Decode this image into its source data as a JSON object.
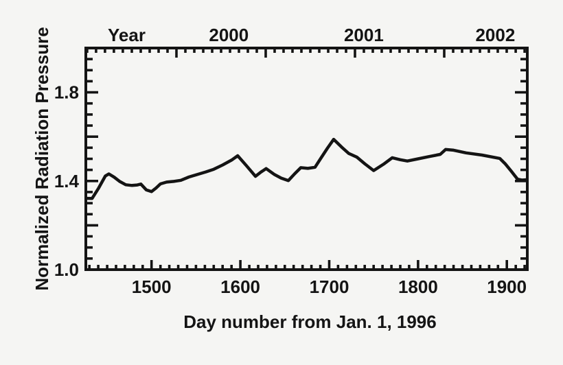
{
  "chart_data": {
    "type": "line",
    "title": "",
    "xlabel": "Day number from Jan. 1, 1996",
    "ylabel": "Normalized Radiation Pressure",
    "top_axis_label": "Year",
    "xlim": [
      1426,
      1923
    ],
    "ylim": [
      1.0,
      2.0
    ],
    "x_major_ticks": [
      1500,
      1600,
      1700,
      1800,
      1900
    ],
    "x_major_tick_labels": [
      "1500",
      "1600",
      "1700",
      "1800",
      "1900"
    ],
    "x_minor_interval": 10,
    "y_labeled_ticks": [
      1.0,
      1.4,
      1.8
    ],
    "y_labeled_tick_labels": [
      "1.0",
      "1.4",
      "1.8"
    ],
    "y_major_interval": 0.2,
    "y_minor_interval": 0.05,
    "top_major_ticks_days": [
      1528,
      1628.5,
      1729.8,
      1830.3
    ],
    "top_labels": [
      {
        "text": "Year",
        "day": 1472
      },
      {
        "text": "2000",
        "day": 1587
      },
      {
        "text": "2001",
        "day": 1739
      },
      {
        "text": "2002",
        "day": 1887
      }
    ],
    "grid": false,
    "legend": "none",
    "ink_color": "#141414",
    "background_color": "#f5f5f3",
    "series": [
      {
        "name": "normalized-radiation-pressure",
        "points": [
          [
            1426,
            1.322
          ],
          [
            1433,
            1.321
          ],
          [
            1440,
            1.365
          ],
          [
            1448,
            1.423
          ],
          [
            1452,
            1.432
          ],
          [
            1458,
            1.417
          ],
          [
            1464,
            1.398
          ],
          [
            1471,
            1.383
          ],
          [
            1478,
            1.38
          ],
          [
            1484,
            1.382
          ],
          [
            1488,
            1.386
          ],
          [
            1494,
            1.36
          ],
          [
            1500,
            1.352
          ],
          [
            1505,
            1.368
          ],
          [
            1510,
            1.387
          ],
          [
            1517,
            1.395
          ],
          [
            1525,
            1.398
          ],
          [
            1533,
            1.403
          ],
          [
            1542,
            1.418
          ],
          [
            1552,
            1.43
          ],
          [
            1561,
            1.441
          ],
          [
            1570,
            1.453
          ],
          [
            1580,
            1.472
          ],
          [
            1590,
            1.494
          ],
          [
            1597,
            1.514
          ],
          [
            1607,
            1.468
          ],
          [
            1617,
            1.421
          ],
          [
            1623,
            1.44
          ],
          [
            1629,
            1.456
          ],
          [
            1638,
            1.43
          ],
          [
            1646,
            1.413
          ],
          [
            1654,
            1.402
          ],
          [
            1661,
            1.432
          ],
          [
            1668,
            1.46
          ],
          [
            1676,
            1.457
          ],
          [
            1684,
            1.462
          ],
          [
            1691,
            1.505
          ],
          [
            1698,
            1.548
          ],
          [
            1705,
            1.588
          ],
          [
            1714,
            1.553
          ],
          [
            1722,
            1.524
          ],
          [
            1731,
            1.508
          ],
          [
            1740,
            1.478
          ],
          [
            1750,
            1.447
          ],
          [
            1762,
            1.478
          ],
          [
            1771,
            1.505
          ],
          [
            1780,
            1.496
          ],
          [
            1788,
            1.49
          ],
          [
            1800,
            1.5
          ],
          [
            1812,
            1.51
          ],
          [
            1825,
            1.52
          ],
          [
            1831,
            1.542
          ],
          [
            1840,
            1.539
          ],
          [
            1854,
            1.527
          ],
          [
            1872,
            1.517
          ],
          [
            1892,
            1.502
          ],
          [
            1898,
            1.478
          ],
          [
            1905,
            1.444
          ],
          [
            1912,
            1.408
          ],
          [
            1917,
            1.404
          ],
          [
            1923,
            1.406
          ]
        ]
      }
    ]
  }
}
